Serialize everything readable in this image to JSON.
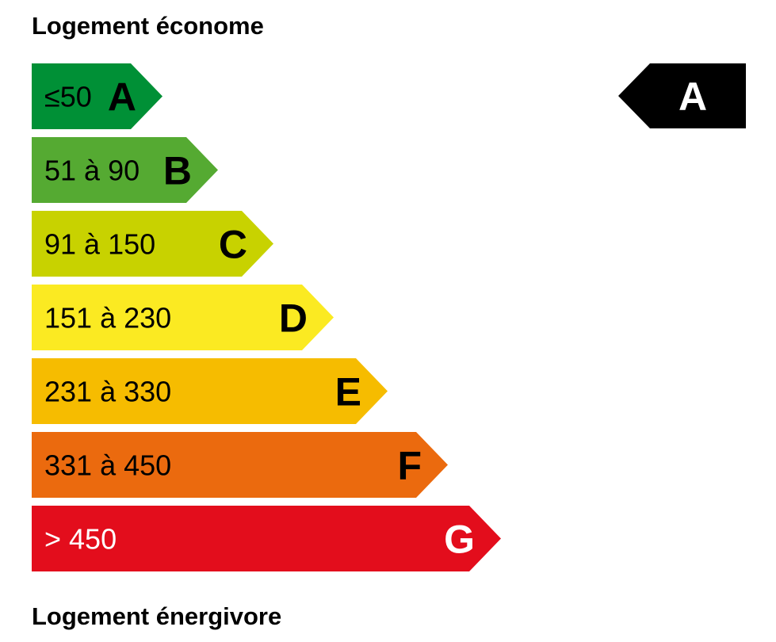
{
  "header": {
    "title": "Logement économe"
  },
  "bands": [
    {
      "range": "≤50",
      "letter": "A",
      "color": "#009036",
      "text_color": "#000000"
    },
    {
      "range": "51 à 90",
      "letter": "B",
      "color": "#55aa32",
      "text_color": "#000000"
    },
    {
      "range": "91 à 150",
      "letter": "C",
      "color": "#c8d200",
      "text_color": "#000000"
    },
    {
      "range": "151 à 230",
      "letter": "D",
      "color": "#fbea22",
      "text_color": "#000000"
    },
    {
      "range": "231 à 330",
      "letter": "E",
      "color": "#f6bc00",
      "text_color": "#000000"
    },
    {
      "range": "331 à 450",
      "letter": "F",
      "color": "#eb6a0e",
      "text_color": "#000000"
    },
    {
      "range": "> 450",
      "letter": "G",
      "color": "#e30d1c",
      "text_color": "#ffffff"
    }
  ],
  "indicator": {
    "letter": "A"
  },
  "footer": {
    "title": "Logement énergivore"
  }
}
